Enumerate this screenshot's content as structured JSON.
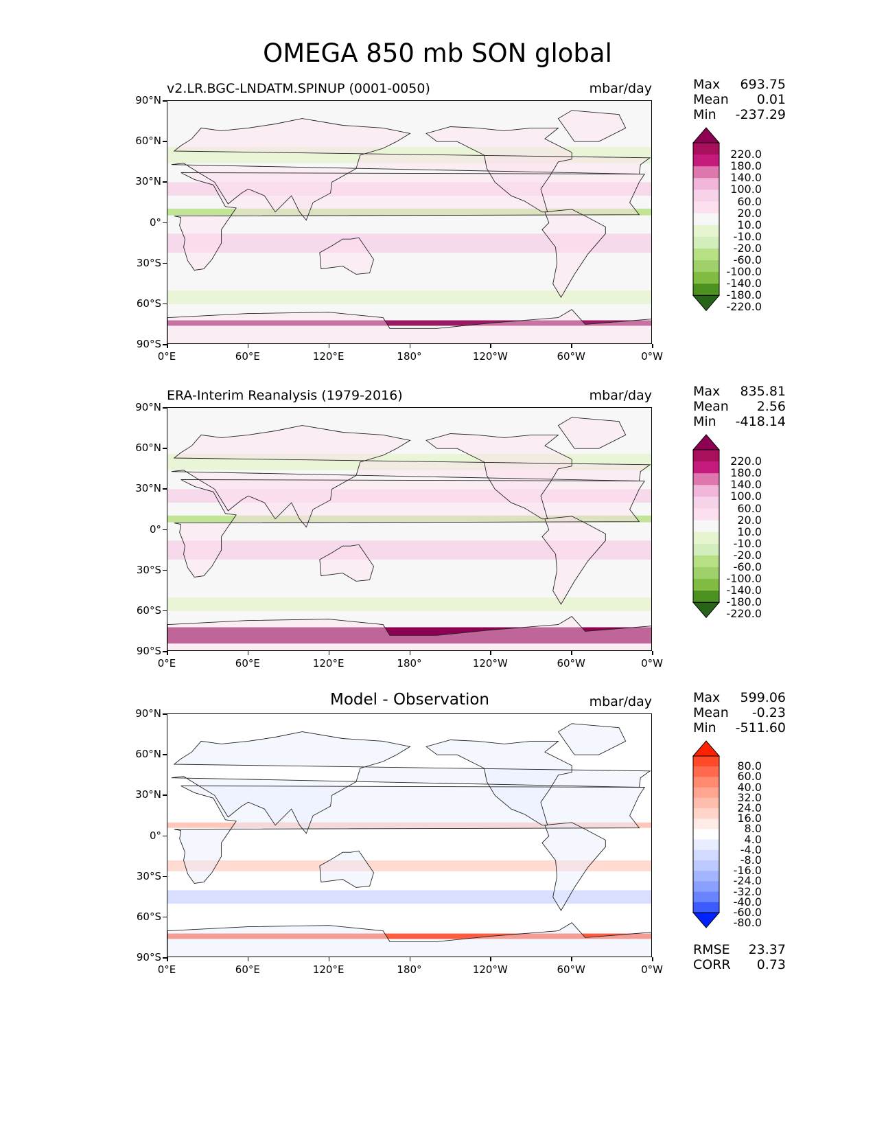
{
  "title": "OMEGA 850 mb SON global",
  "lon_ticks": [
    "0°E",
    "60°E",
    "120°E",
    "180°",
    "120°W",
    "60°W",
    "0°W"
  ],
  "lat_ticks": [
    "90°N",
    "60°N",
    "30°N",
    "0°",
    "30°S",
    "60°S",
    "90°S"
  ],
  "panels": [
    {
      "left_title": "v2.LR.BGC-LNDATM.SPINUP (0001-0050)",
      "center_title": "",
      "units": "mbar/day",
      "stats": [
        {
          "label": "Max",
          "value": "693.75"
        },
        {
          "label": "Mean",
          "value": "0.01"
        },
        {
          "label": "Min",
          "value": "-237.29"
        }
      ],
      "colorbar": {
        "levels": [
          "220.0",
          "180.0",
          "140.0",
          "100.0",
          "60.0",
          "20.0",
          "10.0",
          "-10.0",
          "-20.0",
          "-60.0",
          "-100.0",
          "-140.0",
          "-180.0",
          "-220.0"
        ],
        "colors": [
          "#8e0152",
          "#a8105e",
          "#c51b7d",
          "#de77ae",
          "#f1b6da",
          "#f7d3ea",
          "#fde0ef",
          "#f7f7f7",
          "#e6f5d0",
          "#d3eebd",
          "#b8e186",
          "#9fd06a",
          "#7fbc41",
          "#4d9221",
          "#276419"
        ]
      }
    },
    {
      "left_title": "ERA-Interim Reanalysis (1979-2016)",
      "center_title": "",
      "units": "mbar/day",
      "stats": [
        {
          "label": "Max",
          "value": "835.81"
        },
        {
          "label": "Mean",
          "value": "2.56"
        },
        {
          "label": "Min",
          "value": "-418.14"
        }
      ],
      "colorbar": {
        "levels": [
          "220.0",
          "180.0",
          "140.0",
          "100.0",
          "60.0",
          "20.0",
          "10.0",
          "-10.0",
          "-20.0",
          "-60.0",
          "-100.0",
          "-140.0",
          "-180.0",
          "-220.0"
        ],
        "colors": [
          "#8e0152",
          "#a8105e",
          "#c51b7d",
          "#de77ae",
          "#f1b6da",
          "#f7d3ea",
          "#fde0ef",
          "#f7f7f7",
          "#e6f5d0",
          "#d3eebd",
          "#b8e186",
          "#9fd06a",
          "#7fbc41",
          "#4d9221",
          "#276419"
        ]
      }
    },
    {
      "left_title": "",
      "center_title": "Model - Observation",
      "units": "mbar/day",
      "stats": [
        {
          "label": "Max",
          "value": "599.06"
        },
        {
          "label": "Mean",
          "value": "-0.23"
        },
        {
          "label": "Min",
          "value": "-511.60"
        }
      ],
      "colorbar": {
        "levels": [
          "80.0",
          "60.0",
          "40.0",
          "32.0",
          "24.0",
          "16.0",
          "8.0",
          "4.0",
          "-4.0",
          "-8.0",
          "-16.0",
          "-24.0",
          "-32.0",
          "-40.0",
          "-60.0",
          "-80.0"
        ],
        "colors": [
          "#ff2200",
          "#ff4a2a",
          "#ff6a4e",
          "#ff8a70",
          "#ffa590",
          "#ffbdad",
          "#ffd5c9",
          "#ffece6",
          "#ffffff",
          "#e8edff",
          "#d2dbff",
          "#bccaff",
          "#a3b5ff",
          "#8aa0ff",
          "#6a84ff",
          "#3d5cff",
          "#0022ff"
        ]
      },
      "metrics": [
        {
          "label": "RMSE",
          "value": "23.37"
        },
        {
          "label": "CORR",
          "value": "0.73"
        }
      ]
    }
  ]
}
